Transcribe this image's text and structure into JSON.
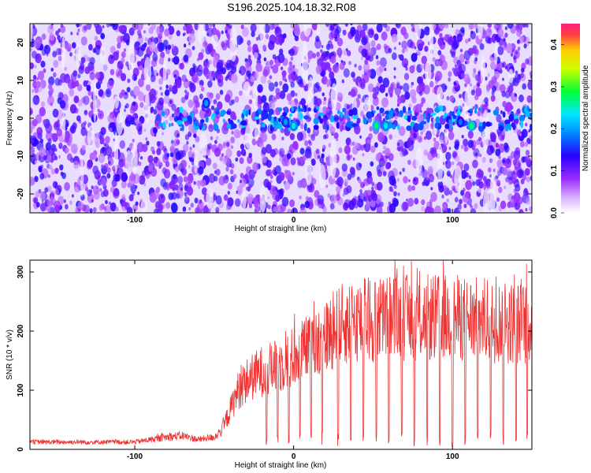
{
  "figure": {
    "title": "S196.2025.104.18.32.R08"
  },
  "chart_data": [
    {
      "type": "heatmap",
      "xlabel": "Height of straight line (km)",
      "ylabel": "Frequency (Hz)",
      "xlim": [
        -166,
        150
      ],
      "ylim": [
        -25,
        25
      ],
      "x_ticks": [
        -100,
        0,
        100
      ],
      "y_ticks": [
        -20,
        -10,
        0,
        10,
        20
      ],
      "colorbar": {
        "label": "Normalized spectral amplitude",
        "range": [
          0.0,
          0.45
        ],
        "ticks": [
          0.0,
          0.1,
          0.2,
          0.3,
          0.4
        ],
        "colors": [
          "#ffffff",
          "#9a2bff",
          "#2a00ff",
          "#00e6ff",
          "#00ff33",
          "#ffff00",
          "#ff2040"
        ]
      },
      "signal_band": {
        "frequency_hz": 0,
        "x_start": -90,
        "x_end": 150
      },
      "hot_spots": [
        {
          "x": -55,
          "y": 4,
          "value": 0.2
        },
        {
          "x": -5,
          "y": -1,
          "value": 0.2
        },
        {
          "x": 0,
          "y": -2,
          "value": 0.25
        },
        {
          "x": 52,
          "y": -2,
          "value": 0.28
        },
        {
          "x": 58,
          "y": -2,
          "value": 0.25
        },
        {
          "x": 112,
          "y": -2,
          "value": 0.28
        },
        {
          "x": 105,
          "y": -1,
          "value": 0.18
        }
      ]
    },
    {
      "type": "line",
      "xlabel": "Height of straight line (km)",
      "ylabel": "SNR (10 * v/v)",
      "xlim": [
        -166,
        150
      ],
      "ylim": [
        0,
        320
      ],
      "x_ticks": [
        -100,
        0,
        100
      ],
      "y_ticks": [
        0,
        100,
        200,
        300
      ],
      "color": "#ee3333",
      "envelope": {
        "x": [
          -166,
          -100,
          -90,
          -80,
          -70,
          -60,
          -50,
          -45,
          -40,
          -35,
          -30,
          -20,
          -10,
          0,
          10,
          20,
          30,
          40,
          60,
          80,
          100,
          120,
          140,
          150
        ],
        "y": [
          15,
          15,
          20,
          25,
          28,
          20,
          25,
          40,
          80,
          120,
          140,
          160,
          170,
          190,
          210,
          230,
          255,
          265,
          270,
          270,
          270,
          265,
          260,
          255
        ]
      },
      "dropouts_x": [
        -17,
        -10,
        -3,
        4,
        11,
        18,
        28,
        36,
        44,
        52,
        60,
        68,
        76,
        84,
        92,
        100,
        108,
        116,
        124,
        132,
        140,
        147
      ]
    }
  ]
}
